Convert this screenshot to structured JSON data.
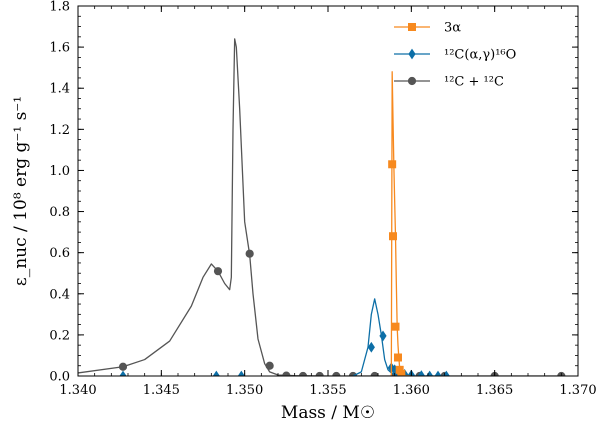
{
  "chart_data": {
    "type": "line",
    "xlabel": "Mass / M☉",
    "ylabel": "ε_nuc / 10⁸ erg g⁻¹ s⁻¹",
    "xlim": [
      1.34,
      1.37
    ],
    "ylim": [
      0.0,
      1.8
    ],
    "xticks": [
      "1.340",
      "1.345",
      "1.350",
      "1.355",
      "1.360",
      "1.365",
      "1.370"
    ],
    "yticks": [
      "0.0",
      "0.2",
      "0.4",
      "0.6",
      "0.8",
      "1.0",
      "1.2",
      "1.4",
      "1.6",
      "1.8"
    ],
    "legend_position": "upper-right",
    "grid": false,
    "series": [
      {
        "name": "3α",
        "color": "#f7891e",
        "marker": "square",
        "x": [
          1.3588,
          1.35885,
          1.3589,
          1.35895,
          1.359,
          1.35905,
          1.3591,
          1.35915,
          1.3592,
          1.35925,
          1.3593,
          1.3594,
          1.3596,
          1.36
        ],
        "y": [
          0.0,
          1.48,
          1.25,
          1.03,
          0.85,
          0.68,
          0.45,
          0.24,
          0.15,
          0.09,
          0.04,
          0.01,
          0.002,
          0.0
        ],
        "markers_x": [
          1.35885,
          1.3589,
          1.35905,
          1.3592,
          1.3593,
          1.3594
        ],
        "markers_y": [
          1.03,
          0.68,
          0.24,
          0.09,
          0.03,
          0.01
        ]
      },
      {
        "name": "¹²C(α,γ)¹⁶O",
        "color": "#0d6fa7",
        "marker": "diamond",
        "x": [
          1.3565,
          1.357,
          1.3574,
          1.3576,
          1.3578,
          1.358,
          1.3582,
          1.3584,
          1.3586,
          1.3588,
          1.359,
          1.3592,
          1.3596,
          1.36,
          1.361,
          1.362
        ],
        "y": [
          0.0,
          0.02,
          0.14,
          0.3,
          0.375,
          0.3,
          0.2,
          0.08,
          0.03,
          0.015,
          0.008,
          0.004,
          0.002,
          0.0,
          0.0,
          0.0
        ],
        "markers_x": [
          1.3427,
          1.3483,
          1.3498,
          1.3576,
          1.3583,
          1.3588,
          1.359,
          1.3592,
          1.3596,
          1.36,
          1.3606,
          1.3611,
          1.3616,
          1.3621
        ],
        "markers_y": [
          0.0,
          0.0,
          0.0,
          0.14,
          0.195,
          0.04,
          0.03,
          0.015,
          0.008,
          0.004,
          0.002,
          0.0,
          0.0,
          0.0
        ]
      },
      {
        "name": "¹²C + ¹²C",
        "color": "#555555",
        "marker": "circle",
        "x": [
          1.34,
          1.3427,
          1.344,
          1.3455,
          1.3468,
          1.3475,
          1.348,
          1.3484,
          1.3488,
          1.3491,
          1.3492,
          1.3493,
          1.3494,
          1.3495,
          1.3497,
          1.35,
          1.3503,
          1.3505,
          1.3508,
          1.3512,
          1.3515,
          1.352,
          1.353,
          1.355,
          1.357,
          1.36,
          1.365,
          1.369
        ],
        "y": [
          0.015,
          0.045,
          0.08,
          0.17,
          0.34,
          0.48,
          0.545,
          0.51,
          0.45,
          0.42,
          0.48,
          1.2,
          1.64,
          1.6,
          1.3,
          0.75,
          0.59,
          0.4,
          0.18,
          0.06,
          0.02,
          0.005,
          0.002,
          0.0,
          0.0,
          0.0,
          0.0,
          0.0
        ],
        "markers_x": [
          1.3427,
          1.3484,
          1.3503,
          1.3515,
          1.3525,
          1.3535,
          1.3545,
          1.3555,
          1.3565,
          1.3578,
          1.359,
          1.3605,
          1.362,
          1.365,
          1.369
        ],
        "markers_y": [
          0.045,
          0.51,
          0.595,
          0.05,
          0.002,
          0.0,
          0.0,
          0.0,
          0.0,
          0.0,
          0.0,
          0.0,
          0.0,
          0.0,
          0.0
        ]
      }
    ]
  }
}
